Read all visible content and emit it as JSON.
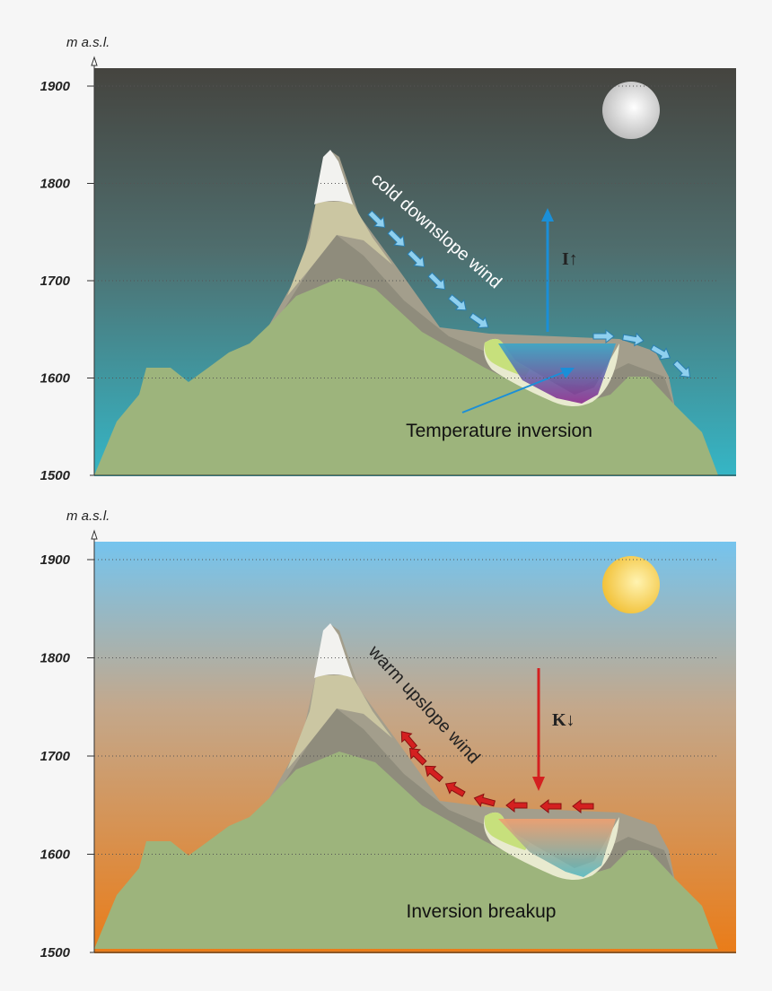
{
  "panels": [
    {
      "axis_label": "m a.s.l.",
      "ticks": [
        1900,
        1800,
        1700,
        1600,
        1500
      ],
      "wind_label": "cold downslope wind",
      "flux_label": "I↑",
      "caption": "Temperature inversion"
    },
    {
      "axis_label": "m a.s.l.",
      "ticks": [
        1900,
        1800,
        1700,
        1600,
        1500
      ],
      "wind_label": "warm upslope wind",
      "flux_label": "K↓",
      "caption": "Inversion breakup"
    }
  ]
}
